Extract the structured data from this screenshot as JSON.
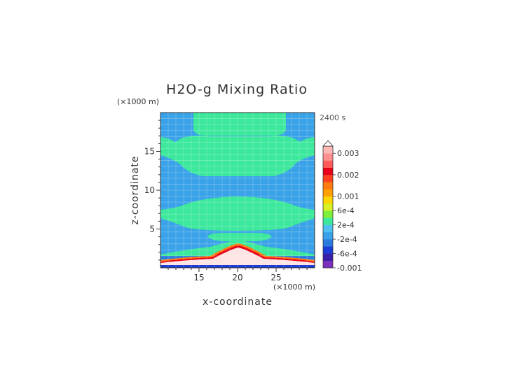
{
  "chart_data": {
    "type": "heatmap",
    "title": "H2O-g Mixing Ratio",
    "time_label": "2400 s",
    "xlabel": "x-coordinate",
    "ylabel": "z-coordinate",
    "x_unit": "(×1000 m)",
    "y_unit": "(×1000 m)",
    "xlim": [
      10,
      30
    ],
    "ylim": [
      0,
      20
    ],
    "x_ticks": [
      15,
      20,
      25
    ],
    "y_ticks": [
      5,
      10,
      15
    ],
    "x_tick_labels": [
      "15",
      "20",
      "25"
    ],
    "y_tick_labels": [
      "5",
      "10",
      "15"
    ],
    "grid": true,
    "legend_placement": "right",
    "colorbar": {
      "levels_bottom_to_top": [
        -0.001,
        -0.0008,
        -0.0006,
        -0.0004,
        -0.0002,
        0,
        0.0002,
        0.0004,
        0.0006,
        0.0008,
        0.001,
        0.0013,
        0.0016,
        0.002,
        0.0023,
        0.0026,
        0.003
      ],
      "colors_bottom_to_top": [
        "#7b2fbf",
        "#3a1fa8",
        "#1b3dd6",
        "#2a7ae0",
        "#3aa2e8",
        "#4fc0f0",
        "#3ce89c",
        "#7ef03a",
        "#d8f024",
        "#ffd400",
        "#ffa000",
        "#ff7a10",
        "#ff4020",
        "#e80018",
        "#ff5a5a",
        "#ff9090",
        "#ffb8b8"
      ],
      "tick_labels": [
        "0.003",
        "0.002",
        "0.001",
        "6e-4",
        "2e-4",
        "-2e-4",
        "-6e-4",
        "-0.001"
      ],
      "tick_values": [
        0.003,
        0.002,
        0.001,
        0.0006,
        0.0002,
        -0.0002,
        -0.0006,
        -0.001
      ],
      "extend": "max"
    },
    "field_description_colors": {
      "background": "#3aa2e8",
      "positive_band": "#3ce89c",
      "peak_core": "#ffe4e4"
    }
  }
}
